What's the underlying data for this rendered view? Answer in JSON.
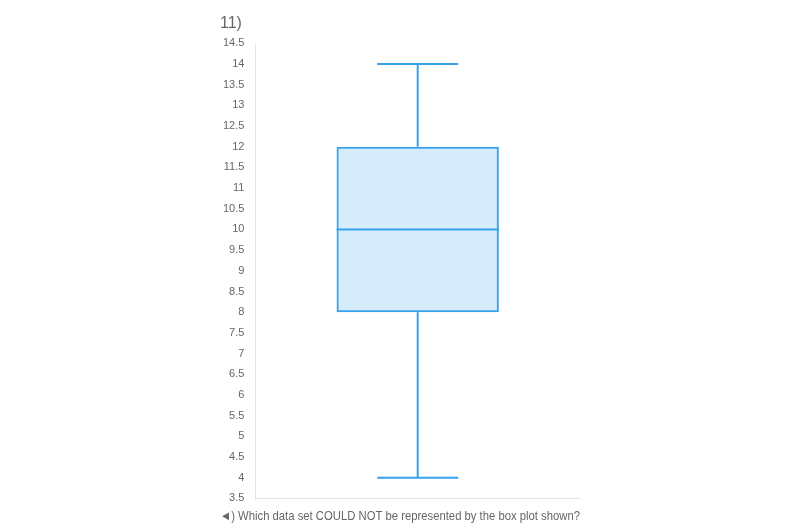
{
  "chart_data": {
    "type": "box",
    "title": "11)",
    "annotations": [
      "◄)",
      "Which data set COULD NOT be represented by the box plot shown?"
    ],
    "categories": [
      null
    ],
    "values": [
      {
        "min": 4,
        "q1": 8,
        "median": 10,
        "q3": 12,
        "max": 14
      }
    ],
    "ylim": [
      3.5,
      14.5
    ],
    "yticks": [
      3.5,
      4,
      4.5,
      5,
      5.5,
      6,
      6.5,
      7,
      7.5,
      8,
      8.5,
      9,
      9.5,
      10,
      10.5,
      11,
      11.5,
      12,
      12.5,
      13,
      13.5,
      14,
      14.5
    ],
    "grid": false,
    "tick_labels": "y"
  }
}
